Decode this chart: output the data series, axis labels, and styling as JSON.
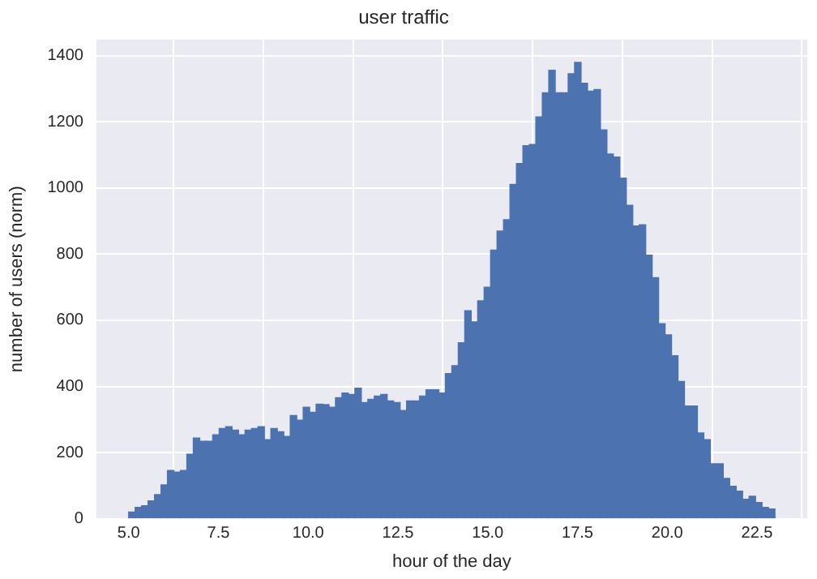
{
  "chart_data": {
    "type": "histogram",
    "title": "user traffic",
    "xlabel": "hour of the day",
    "ylabel": "number of users (norm)",
    "bins": [
      5.0,
      5.18,
      5.36,
      5.54,
      5.72,
      5.9,
      6.08,
      6.26,
      6.44,
      6.62,
      6.8,
      6.98,
      7.16,
      7.34,
      7.52,
      7.7,
      7.88,
      8.06,
      8.24,
      8.42,
      8.6,
      8.78,
      8.96,
      9.14,
      9.32,
      9.5,
      9.68,
      9.86,
      10.04,
      10.22,
      10.4,
      10.58,
      10.76,
      10.94,
      11.12,
      11.3,
      11.48,
      11.66,
      11.84,
      12.02,
      12.2,
      12.38,
      12.56,
      12.74,
      12.92,
      13.1,
      13.28,
      13.46,
      13.64,
      13.82,
      14.0,
      14.18,
      14.36,
      14.54,
      14.72,
      14.9,
      15.08,
      15.26,
      15.44,
      15.62,
      15.8,
      15.98,
      16.16,
      16.34,
      16.52,
      16.7,
      16.88,
      17.06,
      17.24,
      17.42,
      17.6,
      17.78,
      17.96,
      18.14,
      18.32,
      18.5,
      18.68,
      18.86,
      19.04,
      19.22,
      19.4,
      19.58,
      19.76,
      19.94,
      20.12,
      20.3,
      20.48,
      20.66,
      20.84,
      21.02,
      21.2,
      21.38,
      21.56,
      21.74,
      21.92,
      22.1,
      22.28,
      22.46,
      22.64,
      22.82,
      23.0
    ],
    "values": [
      20,
      34,
      39,
      54,
      73,
      102,
      146,
      141,
      146,
      195,
      244,
      234,
      234,
      254,
      273,
      278,
      268,
      254,
      268,
      273,
      278,
      239,
      273,
      263,
      249,
      312,
      298,
      337,
      322,
      346,
      345,
      337,
      366,
      380,
      376,
      395,
      351,
      361,
      371,
      376,
      356,
      351,
      327,
      356,
      356,
      371,
      390,
      390,
      380,
      439,
      463,
      532,
      629,
      595,
      659,
      700,
      812,
      870,
      904,
      1011,
      1074,
      1128,
      1132,
      1215,
      1288,
      1356,
      1288,
      1288,
      1346,
      1380,
      1317,
      1293,
      1298,
      1176,
      1103,
      1094,
      1030,
      948,
      885,
      889,
      797,
      729,
      590,
      556,
      493,
      415,
      341,
      341,
      259,
      239,
      166,
      166,
      122,
      98,
      83,
      59,
      68,
      49,
      34,
      29
    ],
    "color": "#4c72b0",
    "xlim": [
      4.1,
      23.9
    ],
    "xticks": [
      {
        "value": 5,
        "label": "5.0"
      },
      {
        "value": 7.5,
        "label": "7.5"
      },
      {
        "value": 10,
        "label": "10.0"
      },
      {
        "value": 12.5,
        "label": "12.5"
      },
      {
        "value": 15,
        "label": "15.0"
      },
      {
        "value": 17.5,
        "label": "17.5"
      },
      {
        "value": 20,
        "label": "20.0"
      },
      {
        "value": 22.5,
        "label": "22.5"
      }
    ],
    "ylim": [
      0,
      1449
    ],
    "yticks": [
      0,
      200,
      400,
      600,
      800,
      1000,
      1200,
      1400
    ],
    "grid": true,
    "legend": false
  }
}
